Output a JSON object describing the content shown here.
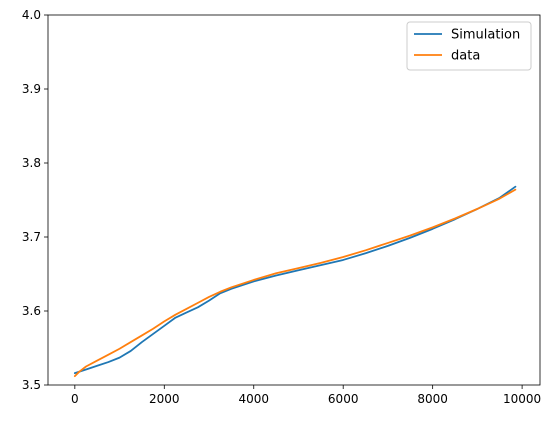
{
  "chart_data": {
    "type": "line",
    "xlim": [
      -600,
      10400
    ],
    "ylim": [
      3.5,
      4.0
    ],
    "x_ticks": [
      0,
      2000,
      4000,
      6000,
      8000,
      10000
    ],
    "y_ticks": [
      3.5,
      3.6,
      3.7,
      3.8,
      3.9,
      4.0
    ],
    "x_tick_labels": [
      "0",
      "2000",
      "4000",
      "6000",
      "8000",
      "10000"
    ],
    "y_tick_labels": [
      "3.5",
      "3.6",
      "3.7",
      "3.8",
      "3.9",
      "4.0"
    ],
    "grid": false,
    "legend_position": "top-right",
    "series": [
      {
        "name": "Simulation",
        "color": "#1f77b4",
        "x": [
          0,
          250,
          500,
          750,
          1000,
          1250,
          1500,
          1750,
          2000,
          2250,
          2500,
          2750,
          3000,
          3250,
          3500,
          4000,
          4500,
          5000,
          5500,
          6000,
          6500,
          7000,
          7500,
          8000,
          8500,
          9000,
          9500,
          9850
        ],
        "y": [
          3.516,
          3.521,
          3.526,
          3.531,
          3.537,
          3.546,
          3.558,
          3.569,
          3.58,
          3.591,
          3.598,
          3.605,
          3.614,
          3.624,
          3.63,
          3.64,
          3.648,
          3.655,
          3.662,
          3.669,
          3.678,
          3.688,
          3.699,
          3.711,
          3.724,
          3.738,
          3.753,
          3.768
        ]
      },
      {
        "name": "data",
        "color": "#ff7f0e",
        "x": [
          0,
          100,
          250,
          500,
          750,
          1000,
          1250,
          1500,
          1750,
          2000,
          2250,
          2500,
          2750,
          3000,
          3250,
          3500,
          4000,
          4500,
          5000,
          5500,
          6000,
          6500,
          7000,
          7500,
          8000,
          8500,
          9000,
          9500,
          9850
        ],
        "y": [
          3.512,
          3.518,
          3.525,
          3.533,
          3.541,
          3.549,
          3.558,
          3.567,
          3.576,
          3.586,
          3.595,
          3.603,
          3.611,
          3.619,
          3.626,
          3.632,
          3.642,
          3.651,
          3.658,
          3.665,
          3.673,
          3.682,
          3.692,
          3.702,
          3.713,
          3.725,
          3.738,
          3.752,
          3.764
        ]
      }
    ]
  }
}
